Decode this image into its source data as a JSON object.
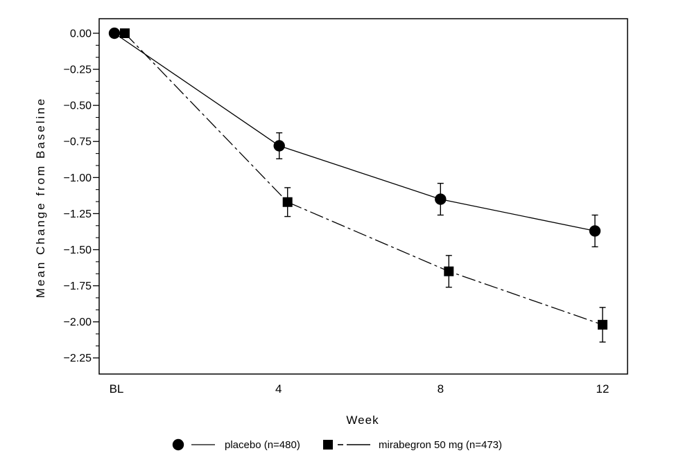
{
  "figure": {
    "background": "#ffffff",
    "foreground": "#000000"
  },
  "chart_data": {
    "type": "line",
    "title": "",
    "xlabel": "Week",
    "ylabel": "Mean Change from Baseline",
    "categories": [
      "BL",
      "4",
      "8",
      "12"
    ],
    "x_numeric": [
      0,
      4,
      8,
      12
    ],
    "ytick_labels": [
      "0.00",
      "−0.25",
      "−0.50",
      "−0.75",
      "−1.00",
      "−1.25",
      "−1.50",
      "−1.75",
      "−2.00",
      "−2.25"
    ],
    "ytick_values": [
      0,
      -0.25,
      -0.5,
      -0.75,
      -1,
      -1.25,
      -1.5,
      -1.75,
      -2,
      -2.25
    ],
    "ylim": [
      -2.36,
      0.1
    ],
    "minor_ticks_between_majors": 2,
    "grid": false,
    "legend_position": "bottom",
    "series": [
      {
        "name": "placebo (n=480)",
        "marker": "circle",
        "line_style": "solid",
        "values": [
          0.0,
          -0.78,
          -1.15,
          -1.37
        ],
        "errors": [
          0,
          0.09,
          0.11,
          0.11
        ]
      },
      {
        "name": "mirabegron 50 mg (n=473)",
        "marker": "square",
        "line_style": "dash-dot",
        "values": [
          0.0,
          -1.17,
          -1.65,
          -2.02
        ],
        "errors": [
          0,
          0.1,
          0.11,
          0.12
        ]
      }
    ]
  }
}
